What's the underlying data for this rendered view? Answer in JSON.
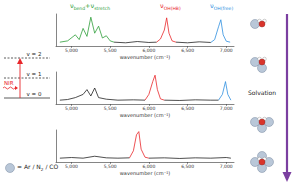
{
  "chart_data": [
    {
      "type": "line",
      "x_label": "wavenumber (cm⁻¹)",
      "xlim": [
        4800,
        7100
      ],
      "xticks": [
        5000,
        5500,
        6000,
        6500,
        7000
      ],
      "ylim": [
        0,
        1
      ],
      "tick_labels": "x",
      "series": [
        {
          "color": "#2e9e3a",
          "x": [
            4850,
            4950,
            5050,
            5100,
            5150,
            5200,
            5250,
            5300,
            5350,
            5400,
            5450,
            5500,
            5550
          ],
          "values": [
            0.12,
            0.16,
            0.35,
            0.2,
            0.55,
            0.3,
            0.9,
            0.4,
            0.62,
            0.25,
            0.32,
            0.16,
            0.12
          ]
        },
        {
          "color": "#222222",
          "x": [
            5550,
            5700,
            5850,
            6000,
            6100
          ],
          "values": [
            0.12,
            0.1,
            0.14,
            0.11,
            0.12
          ]
        },
        {
          "color": "#e8262a",
          "x": [
            6100,
            6150,
            6200,
            6230,
            6260,
            6300,
            6350
          ],
          "values": [
            0.12,
            0.22,
            0.5,
            0.88,
            0.4,
            0.16,
            0.12
          ]
        },
        {
          "color": "#222222",
          "x": [
            6350,
            6500,
            6650,
            6800
          ],
          "values": [
            0.12,
            0.1,
            0.13,
            0.11
          ]
        },
        {
          "color": "#2f8fe0",
          "x": [
            6800,
            6850,
            6900,
            6930,
            6960,
            7000,
            7050
          ],
          "values": [
            0.11,
            0.2,
            0.6,
            0.82,
            0.35,
            0.15,
            0.12
          ]
        }
      ]
    },
    {
      "type": "line",
      "x_label": "wavenumber (cm⁻¹)",
      "xlim": [
        4800,
        7100
      ],
      "xticks": [
        5000,
        5500,
        6000,
        6500,
        7000
      ],
      "ylim": [
        0,
        1
      ],
      "tick_labels": "x",
      "series": [
        {
          "color": "#222222",
          "x": [
            4850,
            4950,
            5050,
            5150,
            5200,
            5250,
            5300,
            5350,
            5450,
            5600,
            5800,
            5950
          ],
          "values": [
            0.12,
            0.14,
            0.2,
            0.3,
            0.45,
            0.25,
            0.5,
            0.2,
            0.15,
            0.12,
            0.13,
            0.12
          ]
        },
        {
          "color": "#e8262a",
          "x": [
            5950,
            6000,
            6050,
            6080,
            6110,
            6150,
            6200
          ],
          "values": [
            0.12,
            0.3,
            0.7,
            0.9,
            0.45,
            0.16,
            0.12
          ]
        },
        {
          "color": "#222222",
          "x": [
            6200,
            6400,
            6600,
            6800,
            6900
          ],
          "values": [
            0.12,
            0.11,
            0.13,
            0.12,
            0.12
          ]
        },
        {
          "color": "#2f8fe0",
          "x": [
            6900,
            6950,
            6990,
            7020,
            7060
          ],
          "values": [
            0.12,
            0.3,
            0.7,
            0.3,
            0.12
          ]
        }
      ]
    },
    {
      "type": "line",
      "x_label": "wavenumber (cm⁻¹)",
      "xlim": [
        4800,
        7100
      ],
      "xticks": [
        5000,
        5500,
        6000,
        6500,
        7000
      ],
      "ylim": [
        0,
        1
      ],
      "tick_labels": "x",
      "series": [
        {
          "color": "#222222",
          "x": [
            4850,
            5000,
            5150,
            5300,
            5450,
            5600,
            5750
          ],
          "values": [
            0.12,
            0.14,
            0.12,
            0.18,
            0.13,
            0.12,
            0.13
          ]
        },
        {
          "color": "#e8262a",
          "x": [
            5750,
            5800,
            5840,
            5870,
            5900,
            5950,
            6000
          ],
          "values": [
            0.13,
            0.35,
            0.85,
            0.95,
            0.4,
            0.15,
            0.12
          ]
        },
        {
          "color": "#222222",
          "x": [
            6000,
            6200,
            6400,
            6600,
            6800,
            7000,
            7060
          ],
          "values": [
            0.12,
            0.13,
            0.11,
            0.13,
            0.12,
            0.14,
            0.12
          ]
        }
      ]
    }
  ],
  "diagram": {
    "peak_labels": [
      {
        "color": "#2e9e3a",
        "parts": [
          {
            "t": "ν"
          },
          {
            "sub": "bend"
          },
          {
            "t": "+ν"
          },
          {
            "sub": "stretch"
          }
        ]
      },
      {
        "color": "#e8262a",
        "parts": [
          {
            "t": "ν"
          },
          {
            "sub": "OH(HB)"
          }
        ]
      },
      {
        "color": "#2f8fe0",
        "parts": [
          {
            "t": "ν"
          },
          {
            "sub": "OH(free)"
          }
        ]
      }
    ],
    "excitation": "NIR",
    "levels": [
      "v = 2",
      "v = 1",
      "v = 0"
    ],
    "process": "Solvation",
    "solvent_counts": [
      1,
      2,
      3,
      4
    ],
    "legend_parts": [
      {
        "t": "= Ar / N"
      },
      {
        "sub": "2"
      },
      {
        "t": " / CO"
      }
    ]
  }
}
